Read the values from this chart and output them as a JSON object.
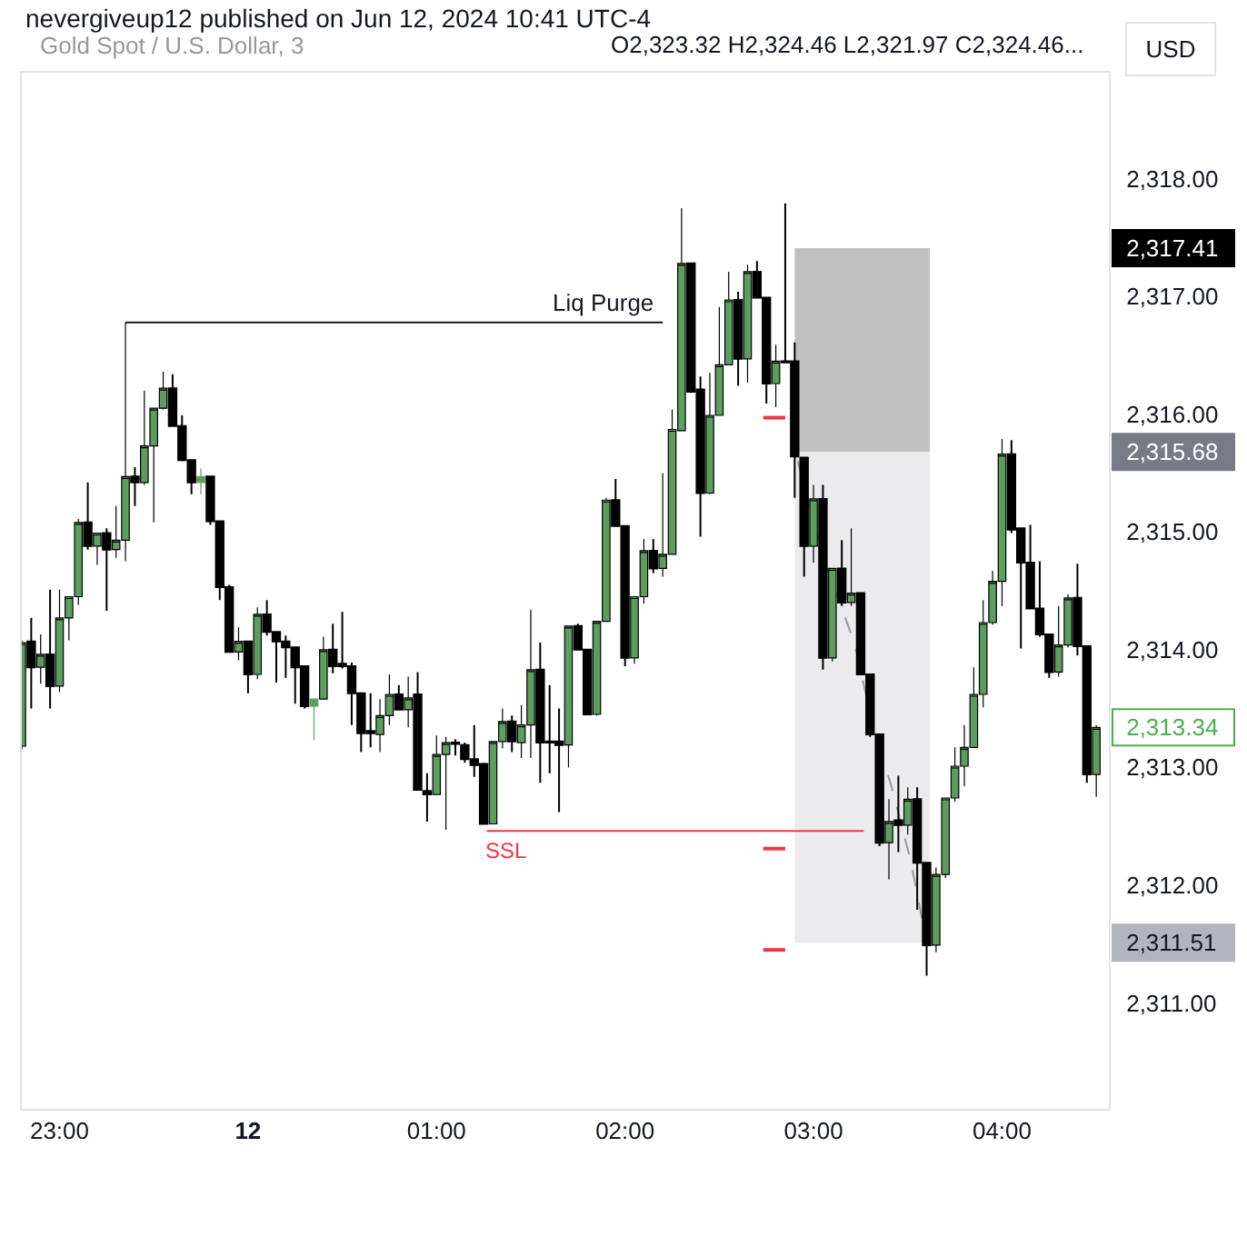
{
  "chart_data": {
    "type": "candlestick",
    "title": "Gold Spot / U.S. Dollar, 3",
    "subtitle": "O2,323.32 H2,324.46 L2,321.97 C2,324.46...",
    "x": [
      "2024-06-11T22:48",
      "2024-06-11T22:51",
      "2024-06-11T22:54",
      "2024-06-11T22:57",
      "2024-06-11T23:00",
      "2024-06-11T23:03",
      "2024-06-11T23:06",
      "2024-06-11T23:09",
      "2024-06-11T23:12",
      "2024-06-11T23:15",
      "2024-06-11T23:18",
      "2024-06-11T23:21",
      "2024-06-11T23:24",
      "2024-06-11T23:27",
      "2024-06-11T23:30",
      "2024-06-11T23:33",
      "2024-06-11T23:36",
      "2024-06-11T23:39",
      "2024-06-11T23:42",
      "2024-06-11T23:45",
      "2024-06-11T23:48",
      "2024-06-11T23:51",
      "2024-06-11T23:54",
      "2024-06-11T23:57",
      "2024-06-12T00:00",
      "2024-06-12T00:03",
      "2024-06-12T00:06",
      "2024-06-12T00:09",
      "2024-06-12T00:12",
      "2024-06-12T00:15",
      "2024-06-12T00:18",
      "2024-06-12T00:21",
      "2024-06-12T00:24",
      "2024-06-12T00:27",
      "2024-06-12T00:30",
      "2024-06-12T00:33",
      "2024-06-12T00:36",
      "2024-06-12T00:39",
      "2024-06-12T00:42",
      "2024-06-12T00:45",
      "2024-06-12T00:48",
      "2024-06-12T00:51",
      "2024-06-12T00:54",
      "2024-06-12T00:57",
      "2024-06-12T01:00",
      "2024-06-12T01:03",
      "2024-06-12T01:06",
      "2024-06-12T01:09",
      "2024-06-12T01:12",
      "2024-06-12T01:15",
      "2024-06-12T01:18",
      "2024-06-12T01:21",
      "2024-06-12T01:24",
      "2024-06-12T01:27",
      "2024-06-12T01:30",
      "2024-06-12T01:33",
      "2024-06-12T01:36",
      "2024-06-12T01:39",
      "2024-06-12T01:42",
      "2024-06-12T01:45",
      "2024-06-12T01:48",
      "2024-06-12T01:51",
      "2024-06-12T01:54",
      "2024-06-12T01:57",
      "2024-06-12T02:00",
      "2024-06-12T02:03",
      "2024-06-12T02:06",
      "2024-06-12T02:09",
      "2024-06-12T02:12",
      "2024-06-12T02:15",
      "2024-06-12T02:18",
      "2024-06-12T02:21",
      "2024-06-12T02:24",
      "2024-06-12T02:27",
      "2024-06-12T02:30",
      "2024-06-12T02:33",
      "2024-06-12T02:36",
      "2024-06-12T02:39",
      "2024-06-12T02:42",
      "2024-06-12T02:45",
      "2024-06-12T02:48",
      "2024-06-12T02:51",
      "2024-06-12T02:54",
      "2024-06-12T02:57",
      "2024-06-12T03:00",
      "2024-06-12T03:03",
      "2024-06-12T03:06",
      "2024-06-12T03:09",
      "2024-06-12T03:12",
      "2024-06-12T03:15",
      "2024-06-12T03:18",
      "2024-06-12T03:21",
      "2024-06-12T03:24",
      "2024-06-12T03:27",
      "2024-06-12T03:30",
      "2024-06-12T03:33",
      "2024-06-12T03:36",
      "2024-06-12T03:39",
      "2024-06-12T03:42",
      "2024-06-12T03:45",
      "2024-06-12T03:48",
      "2024-06-12T03:51",
      "2024-06-12T03:54",
      "2024-06-12T03:57",
      "2024-06-12T04:00",
      "2024-06-12T04:03",
      "2024-06-12T04:06",
      "2024-06-12T04:09",
      "2024-06-12T04:12",
      "2024-06-12T04:15",
      "2024-06-12T04:18",
      "2024-06-12T04:21",
      "2024-06-12T04:24",
      "2024-06-12T04:27",
      "2024-06-12T04:30"
    ],
    "ohlc": [
      [
        2313.18,
        2314.08,
        2313.15,
        2314.06
      ],
      [
        2314.07,
        2314.27,
        2313.5,
        2313.85
      ],
      [
        2313.85,
        2314.13,
        2313.71,
        2313.96
      ],
      [
        2313.96,
        2314.51,
        2313.5,
        2313.69
      ],
      [
        2313.69,
        2314.51,
        2313.64,
        2314.27
      ],
      [
        2314.27,
        2314.45,
        2314.08,
        2314.45
      ],
      [
        2314.45,
        2315.11,
        2314.38,
        2315.08
      ],
      [
        2315.08,
        2315.42,
        2314.85,
        2314.88
      ],
      [
        2314.88,
        2314.99,
        2314.72,
        2314.99
      ],
      [
        2314.99,
        2315.03,
        2314.33,
        2314.85
      ],
      [
        2314.85,
        2315.22,
        2314.78,
        2314.93
      ],
      [
        2314.93,
        2316.78,
        2314.75,
        2315.47
      ],
      [
        2315.47,
        2315.55,
        2315.22,
        2315.42
      ],
      [
        2315.42,
        2316.2,
        2315.4,
        2315.73
      ],
      [
        2315.73,
        2316.05,
        2315.08,
        2316.05
      ],
      [
        2316.05,
        2316.36,
        2316.04,
        2316.22
      ],
      [
        2316.22,
        2316.34,
        2315.9,
        2315.9
      ],
      [
        2315.9,
        2315.99,
        2315.6,
        2315.61
      ],
      [
        2315.61,
        2315.61,
        2315.32,
        2315.42
      ],
      [
        2315.42,
        2315.54,
        2315.32,
        2315.47
      ],
      [
        2315.47,
        2315.47,
        2315.06,
        2315.09
      ],
      [
        2315.09,
        2315.09,
        2314.42,
        2314.53
      ],
      [
        2314.53,
        2314.55,
        2313.98,
        2313.98
      ],
      [
        2313.98,
        2314.19,
        2313.91,
        2314.07
      ],
      [
        2314.07,
        2314.07,
        2313.63,
        2313.79
      ],
      [
        2313.79,
        2314.36,
        2313.75,
        2314.3
      ],
      [
        2314.3,
        2314.42,
        2314.12,
        2314.15
      ],
      [
        2314.15,
        2314.15,
        2313.72,
        2314.07
      ],
      [
        2314.07,
        2314.12,
        2313.76,
        2314.02
      ],
      [
        2314.02,
        2314.02,
        2313.54,
        2313.85
      ],
      [
        2313.86,
        2313.86,
        2313.5,
        2313.52
      ],
      [
        2313.52,
        2313.58,
        2313.23,
        2313.58
      ],
      [
        2313.58,
        2314.11,
        2313.58,
        2314.0
      ],
      [
        2314.0,
        2314.22,
        2313.8,
        2313.86
      ],
      [
        2313.88,
        2314.32,
        2313.84,
        2313.86
      ],
      [
        2313.86,
        2313.89,
        2313.36,
        2313.63
      ],
      [
        2313.63,
        2313.63,
        2313.13,
        2313.29
      ],
      [
        2313.31,
        2313.63,
        2313.17,
        2313.29
      ],
      [
        2313.28,
        2313.58,
        2313.13,
        2313.44
      ],
      [
        2313.44,
        2313.79,
        2313.36,
        2313.62
      ],
      [
        2313.62,
        2313.7,
        2313.49,
        2313.49
      ],
      [
        2313.49,
        2313.77,
        2313.34,
        2313.59
      ],
      [
        2313.62,
        2313.81,
        2312.81,
        2312.81
      ],
      [
        2312.8,
        2312.95,
        2312.54,
        2312.77
      ],
      [
        2312.77,
        2313.27,
        2312.77,
        2313.11
      ],
      [
        2313.11,
        2313.26,
        2312.47,
        2313.21
      ],
      [
        2313.21,
        2313.24,
        2313.1,
        2313.2
      ],
      [
        2313.19,
        2313.21,
        2313.04,
        2313.07
      ],
      [
        2313.07,
        2313.36,
        2312.92,
        2313.02
      ],
      [
        2313.03,
        2313.04,
        2312.52,
        2312.52
      ],
      [
        2312.52,
        2313.22,
        2312.52,
        2313.22
      ],
      [
        2313.22,
        2313.5,
        2313.16,
        2313.39
      ],
      [
        2313.39,
        2313.44,
        2313.13,
        2313.22
      ],
      [
        2313.21,
        2313.53,
        2313.08,
        2313.36
      ],
      [
        2313.36,
        2314.34,
        2313.08,
        2313.83
      ],
      [
        2313.83,
        2314.06,
        2312.87,
        2313.21
      ],
      [
        2313.22,
        2313.7,
        2312.95,
        2313.21
      ],
      [
        2313.22,
        2313.5,
        2312.62,
        2313.19
      ],
      [
        2313.19,
        2314.2,
        2313.0,
        2314.2
      ],
      [
        2314.2,
        2314.22,
        2314.0,
        2314.0
      ],
      [
        2314.0,
        2314.0,
        2313.45,
        2313.45
      ],
      [
        2313.45,
        2314.24,
        2313.44,
        2314.24
      ],
      [
        2314.24,
        2315.29,
        2314.24,
        2315.27
      ],
      [
        2315.27,
        2315.45,
        2315.05,
        2315.05
      ],
      [
        2315.05,
        2315.05,
        2313.86,
        2313.93
      ],
      [
        2313.93,
        2314.45,
        2313.88,
        2314.45
      ],
      [
        2314.45,
        2314.94,
        2314.39,
        2314.84
      ],
      [
        2314.84,
        2314.94,
        2314.65,
        2314.69
      ],
      [
        2314.69,
        2315.5,
        2314.62,
        2314.81
      ],
      [
        2314.81,
        2316.04,
        2314.81,
        2315.87
      ],
      [
        2315.86,
        2317.75,
        2315.86,
        2317.28
      ],
      [
        2317.28,
        2317.28,
        2316.18,
        2316.19
      ],
      [
        2316.21,
        2316.32,
        2314.96,
        2315.33
      ],
      [
        2315.33,
        2316.35,
        2315.32,
        2315.99
      ],
      [
        2315.99,
        2316.91,
        2315.99,
        2316.42
      ],
      [
        2316.42,
        2317.21,
        2316.42,
        2316.97
      ],
      [
        2316.97,
        2317.04,
        2316.24,
        2316.47
      ],
      [
        2316.47,
        2317.27,
        2316.27,
        2317.21
      ],
      [
        2317.21,
        2317.3,
        2316.99,
        2316.99
      ],
      [
        2316.99,
        2316.99,
        2316.09,
        2316.26
      ],
      [
        2316.26,
        2316.59,
        2316.06,
        2316.45
      ],
      [
        2316.45,
        2317.79,
        2316.44,
        2316.44
      ],
      [
        2316.45,
        2316.61,
        2315.29,
        2315.64
      ],
      [
        2315.63,
        2315.63,
        2314.62,
        2314.88
      ],
      [
        2314.88,
        2315.4,
        2314.74,
        2315.28
      ],
      [
        2315.28,
        2315.4,
        2313.83,
        2313.93
      ],
      [
        2313.93,
        2314.69,
        2313.9,
        2314.69
      ],
      [
        2314.69,
        2314.93,
        2314.37,
        2314.4
      ],
      [
        2314.4,
        2315.03,
        2314.37,
        2314.48
      ],
      [
        2314.48,
        2314.48,
        2313.79,
        2313.79
      ],
      [
        2313.79,
        2313.79,
        2313.26,
        2313.28
      ],
      [
        2313.28,
        2313.28,
        2312.33,
        2312.36
      ],
      [
        2312.36,
        2312.73,
        2312.05,
        2312.54
      ],
      [
        2312.55,
        2312.93,
        2312.28,
        2312.51
      ],
      [
        2312.51,
        2312.83,
        2312.43,
        2312.73
      ],
      [
        2312.73,
        2312.83,
        2311.79,
        2312.19
      ],
      [
        2312.19,
        2312.19,
        2311.23,
        2311.49
      ],
      [
        2311.49,
        2312.15,
        2311.43,
        2312.09
      ],
      [
        2312.09,
        2312.74,
        2312.06,
        2312.74
      ],
      [
        2312.74,
        2313.17,
        2312.71,
        2313.01
      ],
      [
        2313.01,
        2313.36,
        2312.84,
        2313.17
      ],
      [
        2313.17,
        2313.85,
        2313.17,
        2313.62
      ],
      [
        2313.62,
        2314.42,
        2313.51,
        2314.23
      ],
      [
        2314.23,
        2314.67,
        2314.21,
        2314.58
      ],
      [
        2314.58,
        2315.79,
        2314.37,
        2315.66
      ],
      [
        2315.66,
        2315.78,
        2314.99,
        2315.02
      ],
      [
        2315.03,
        2315.03,
        2314.01,
        2314.74
      ],
      [
        2314.74,
        2315.06,
        2314.35,
        2314.35
      ],
      [
        2314.35,
        2314.75,
        2314.11,
        2314.13
      ],
      [
        2314.13,
        2314.13,
        2313.76,
        2313.81
      ],
      [
        2313.81,
        2314.37,
        2313.77,
        2314.04
      ],
      [
        2314.04,
        2314.47,
        2314.02,
        2314.44
      ],
      [
        2314.44,
        2314.73,
        2313.95,
        2314.03
      ],
      [
        2314.03,
        2314.03,
        2312.87,
        2312.94
      ],
      [
        2312.94,
        2313.36,
        2312.75,
        2313.34
      ]
    ],
    "colors": [
      "#5d9e5f",
      "#000000",
      "#5d9e5f",
      "#000000",
      "#5d9e5f",
      "#5d9e5f",
      "#5d9e5f",
      "#000000",
      "#5d9e5f",
      "#000000",
      "#5d9e5f",
      "#5d9e5f",
      "#000000",
      "#5d9e5f",
      "#5d9e5f",
      "#5d9e5f",
      "#000000",
      "#000000",
      "#000000",
      "#5d9e5f",
      "#000000",
      "#000000",
      "#000000",
      "#5d9e5f",
      "#000000",
      "#5d9e5f",
      "#000000",
      "#000000",
      "#000000",
      "#000000",
      "#000000",
      "#5d9e5f",
      "#5d9e5f",
      "#000000",
      "#000000",
      "#000000",
      "#000000",
      "#000000",
      "#5d9e5f",
      "#5d9e5f",
      "#000000",
      "#5d9e5f",
      "#000000",
      "#000000",
      "#5d9e5f",
      "#5d9e5f",
      "#000000",
      "#000000",
      "#000000",
      "#000000",
      "#5d9e5f",
      "#5d9e5f",
      "#000000",
      "#5d9e5f",
      "#5d9e5f",
      "#000000",
      "#000000",
      "#000000",
      "#5d9e5f",
      "#000000",
      "#000000",
      "#5d9e5f",
      "#5d9e5f",
      "#000000",
      "#000000",
      "#5d9e5f",
      "#5d9e5f",
      "#000000",
      "#5d9e5f",
      "#5d9e5f",
      "#5d9e5f",
      "#000000",
      "#000000",
      "#5d9e5f",
      "#5d9e5f",
      "#5d9e5f",
      "#000000",
      "#5d9e5f",
      "#000000",
      "#000000",
      "#5d9e5f",
      "#000000",
      "#000000",
      "#000000",
      "#5d9e5f",
      "#000000",
      "#5d9e5f",
      "#000000",
      "#5d9e5f",
      "#000000",
      "#000000",
      "#000000",
      "#5d9e5f",
      "#000000",
      "#5d9e5f",
      "#000000",
      "#000000",
      "#5d9e5f",
      "#5d9e5f",
      "#5d9e5f",
      "#5d9e5f",
      "#5d9e5f",
      "#5d9e5f",
      "#5d9e5f",
      "#5d9e5f",
      "#000000",
      "#000000",
      "#000000",
      "#000000",
      "#000000",
      "#5d9e5f",
      "#5d9e5f",
      "#000000",
      "#000000",
      "#5d9e5f"
    ],
    "series": [
      {
        "type": "line",
        "x": [
          "2024-06-12T02:54",
          "2024-06-12T03:37"
        ],
        "values": [
          null,
          null
        ],
        "lower": [
          2315.68,
          2315.68
        ],
        "upper": [
          2317.41,
          2317.41
        ],
        "color": "#c0c0c0"
      },
      {
        "type": "line",
        "x": [
          "2024-06-12T02:54",
          "2024-06-12T03:37"
        ],
        "values": [
          null,
          null
        ],
        "lower": [
          2311.51,
          2311.51
        ],
        "upper": [
          2315.68,
          2315.68
        ],
        "color": "#ebebed"
      },
      {
        "type": "line",
        "x": [
          "2024-06-11T23:21",
          "2024-06-12T02:12"
        ],
        "values": [
          2316.78,
          2316.78
        ],
        "color": "#131722"
      },
      {
        "type": "line",
        "x": [
          "2024-06-12T01:16",
          "2024-06-12T03:16"
        ],
        "values": [
          2312.46,
          2312.46
        ],
        "color": "#f23645"
      },
      {
        "type": "line",
        "x": [
          "2024-06-12T02:44",
          "2024-06-12T02:51"
        ],
        "values": [
          2315.97,
          2315.97
        ],
        "color": "#f23645"
      },
      {
        "type": "line",
        "x": [
          "2024-06-12T02:44",
          "2024-06-12T02:51"
        ],
        "values": [
          2312.31,
          2312.31
        ],
        "color": "#f23645"
      },
      {
        "type": "line",
        "x": [
          "2024-06-12T02:44",
          "2024-06-12T02:51"
        ],
        "values": [
          2311.45,
          2311.45
        ],
        "color": "#f23645"
      },
      {
        "type": "line",
        "x": [
          "2024-06-12T02:55",
          "2024-06-12T03:03",
          "2024-06-12T03:13",
          "2024-06-12T03:19",
          "2024-06-12T03:25",
          "2024-06-12T03:31",
          "2024-06-12T03:36"
        ],
        "values": [
          2315.6,
          2314.78,
          2314.06,
          2313.34,
          2312.82,
          2312.2,
          2311.51
        ],
        "color": "#9598a1",
        "line_style": "dashed"
      }
    ],
    "xlim": [
      "2024-06-11T22:48",
      "2024-06-12T04:34"
    ],
    "xticks": [
      {
        "value": "2024-06-11T23:00",
        "label": "23:00"
      },
      {
        "value": "2024-06-12T00:00",
        "label": "12"
      },
      {
        "value": "2024-06-12T01:00",
        "label": "01:00"
      },
      {
        "value": "2024-06-12T02:00",
        "label": "02:00"
      },
      {
        "value": "2024-06-12T03:00",
        "label": "03:00"
      },
      {
        "value": "2024-06-12T04:00",
        "label": "04:00"
      }
    ],
    "ylim": [
      2310.1,
      2318.9
    ],
    "yticks": [
      {
        "value": 2311,
        "label": "2,311.00"
      },
      {
        "value": 2311.51,
        "label": "2,311.51"
      },
      {
        "value": 2312,
        "label": "2,312.00"
      },
      {
        "value": 2313,
        "label": "2,313.00"
      },
      {
        "value": 2313.34,
        "label": "2,313.34"
      },
      {
        "value": 2314,
        "label": "2,314.00"
      },
      {
        "value": 2315,
        "label": "2,315.00"
      },
      {
        "value": 2315.68,
        "label": "2,315.68"
      },
      {
        "value": 2316,
        "label": "2,316.00"
      },
      {
        "value": 2317,
        "label": "2,317.00"
      },
      {
        "value": 2317.41,
        "label": "2,317.41"
      },
      {
        "value": 2318,
        "label": "2,318.00"
      }
    ],
    "annotations": [
      "nevergiveup12 published on Jun 12, 2024 10:41 UTC-4",
      "USD",
      {
        "text": "Liq Purge",
        "x": "2024-06-12T01:53",
        "y": 2316.78
      },
      {
        "text": "SSL",
        "x": "2024-06-12T01:22",
        "y": 2312.46
      }
    ]
  }
}
